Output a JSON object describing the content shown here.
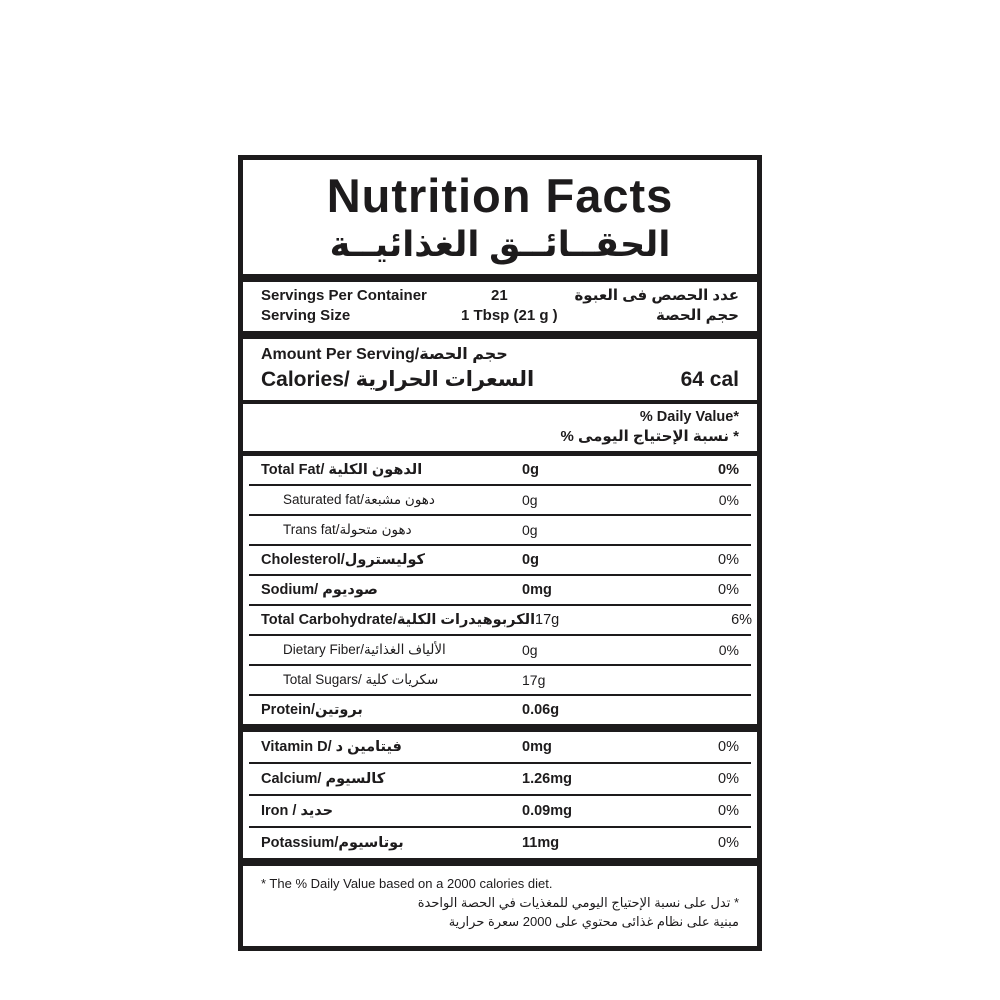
{
  "title": {
    "en": "Nutrition Facts",
    "ar": "الحقــائــق الغذائيــة"
  },
  "servings": {
    "per_container_label": "Servings Per Container",
    "per_container_value": "21",
    "per_container_ar": "عدد الحصص فى العبوة",
    "size_label": "Serving Size",
    "size_value": "1 Tbsp (21 g )",
    "size_ar": "حجم الحصة"
  },
  "amount": {
    "label_en": "Amount Per Serving/",
    "label_ar": "حجم الحصة",
    "calories_en": "Calories/",
    "calories_ar": "السعرات الحرارية",
    "calories_value": "64 cal"
  },
  "daily_value": {
    "en": "% Daily Value*",
    "ar": "* نسبة الإحتياج اليومى %"
  },
  "nutrients": [
    {
      "en": "Total Fat/ ",
      "ar": "الدهون الكلية",
      "value": "0g",
      "dv": "0%",
      "bold": true,
      "value_bold": true,
      "dv_bold": true,
      "indent": false
    },
    {
      "en": "Saturated fat/",
      "ar": "دهون مشبعة",
      "value": "0g",
      "dv": "0%",
      "bold": false,
      "value_bold": false,
      "dv_bold": false,
      "indent": true
    },
    {
      "en": "Trans fat/",
      "ar": "دهون متحولة",
      "value": "0g",
      "dv": "",
      "bold": false,
      "value_bold": false,
      "dv_bold": false,
      "indent": true
    },
    {
      "en": "Cholesterol/",
      "ar": "كوليسترول",
      "value": "0g",
      "dv": "0%",
      "bold": true,
      "value_bold": true,
      "dv_bold": false,
      "indent": false
    },
    {
      "en": "Sodium/ ",
      "ar": "صوديوم",
      "value": "0mg",
      "dv": "0%",
      "bold": true,
      "value_bold": true,
      "dv_bold": false,
      "indent": false
    },
    {
      "en": "Total Carbohydrate/",
      "ar": "الكربوهيدرات الكلية",
      "value": "17g",
      "dv": "6%",
      "bold": true,
      "value_bold": false,
      "dv_bold": false,
      "indent": false
    },
    {
      "en": "Dietary Fiber/",
      "ar": "الألياف الغذائية",
      "value": "0g",
      "dv": "0%",
      "bold": false,
      "value_bold": false,
      "dv_bold": false,
      "indent": true
    },
    {
      "en": "Total Sugars/ ",
      "ar": "سكريات كلية",
      "value": "17g",
      "dv": "",
      "bold": false,
      "value_bold": false,
      "dv_bold": false,
      "indent": true
    },
    {
      "en": "Protein/",
      "ar": "بروتين",
      "value": "0.06g",
      "dv": "",
      "bold": true,
      "value_bold": true,
      "dv_bold": false,
      "indent": false
    }
  ],
  "micros": [
    {
      "en": "Vitamin D/ ",
      "ar": "فيتامين د",
      "value": "0mg",
      "dv": "0%",
      "bold": true,
      "value_bold": true,
      "dv_bold": false,
      "indent": false
    },
    {
      "en": "Calcium/ ",
      "ar": "كالسيوم",
      "value": "1.26mg",
      "dv": "0%",
      "bold": true,
      "value_bold": true,
      "dv_bold": false,
      "indent": false
    },
    {
      "en": "Iron / ",
      "ar": "حديد",
      "value": "0.09mg",
      "dv": "0%",
      "bold": true,
      "value_bold": true,
      "dv_bold": false,
      "indent": false
    },
    {
      "en": "Potassium/",
      "ar": "بوتاسيوم",
      "value": "11mg",
      "dv": "0%",
      "bold": true,
      "value_bold": true,
      "dv_bold": false,
      "indent": false
    }
  ],
  "footnote": {
    "en": "* The % Daily Value based on a 2000 calories diet.",
    "ar1": "* تدل على نسبة الإحتياج اليومي للمغذيات في الحصة الواحدة",
    "ar2": "مبنية على نظام غذائى محتوي على 2000 سعرة حرارية"
  },
  "colors": {
    "ink": "#1d1b1c",
    "background": "#ffffff"
  }
}
